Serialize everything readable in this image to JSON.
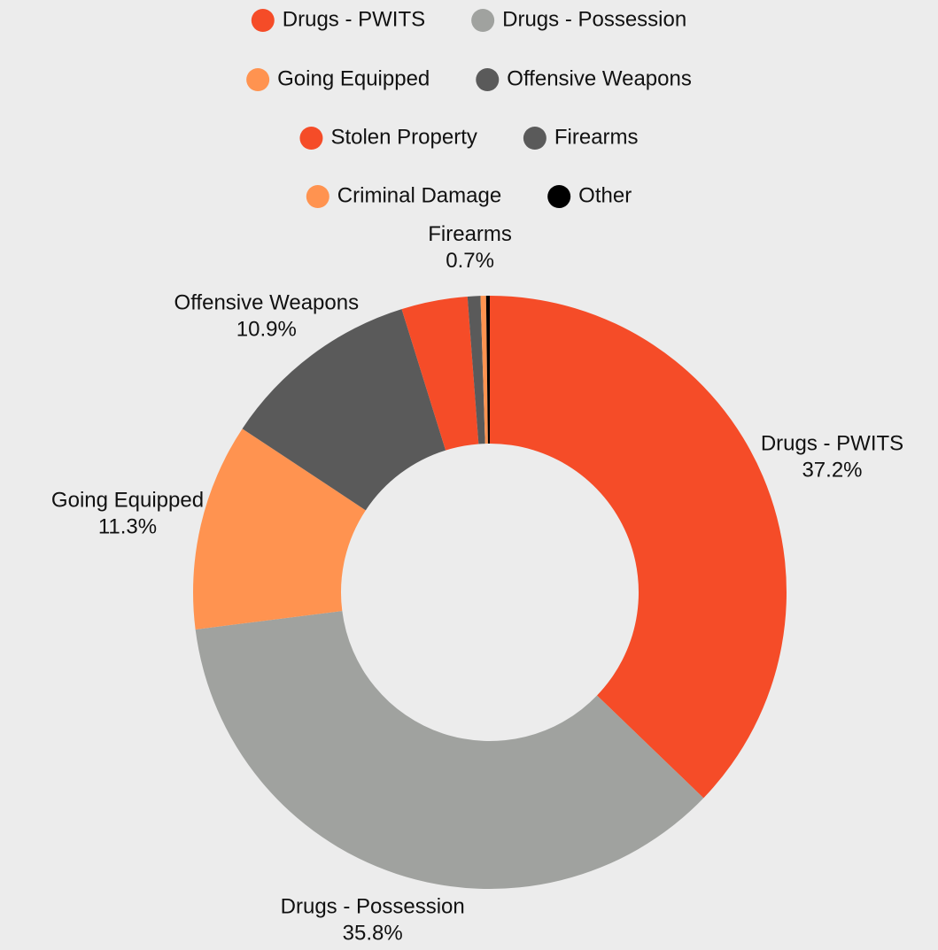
{
  "chart_data": {
    "type": "donut",
    "categories": [
      "Drugs - PWITS",
      "Drugs - Possession",
      "Going Equipped",
      "Offensive Weapons",
      "Stolen Property",
      "Firearms",
      "Criminal Damage",
      "Other"
    ],
    "values": [
      37.2,
      35.8,
      11.3,
      10.9,
      3.6,
      0.7,
      0.3,
      0.2
    ],
    "value_labels": [
      "37.2%",
      "35.8%",
      "11.3%",
      "10.9%",
      null,
      "0.7%",
      null,
      null
    ],
    "colors": [
      "#f54c28",
      "#a0a29f",
      "#ff9350",
      "#5a5a5a",
      "#f54c28",
      "#5a5a5a",
      "#ff9350",
      "#000000"
    ],
    "legend": "top"
  }
}
